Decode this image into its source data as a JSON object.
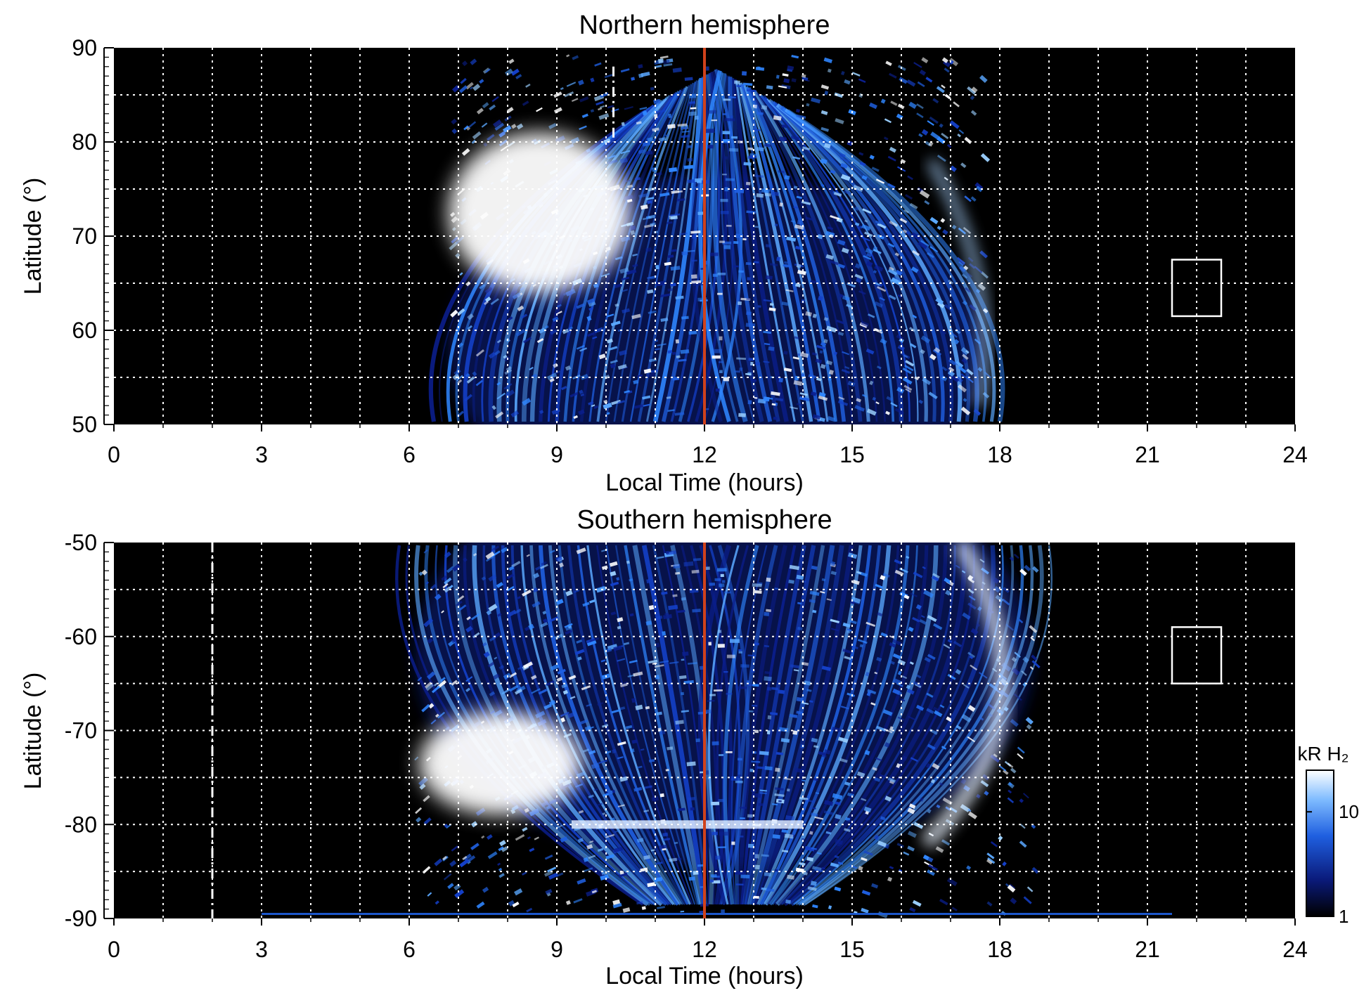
{
  "chart_data": [
    {
      "type": "heatmap",
      "title": "Northern hemisphere",
      "xlabel": "Local Time (hours)",
      "ylabel": "Latitude (°)",
      "xlim": [
        0,
        24
      ],
      "ylim": [
        50,
        90
      ],
      "xticks": [
        0,
        3,
        6,
        9,
        12,
        15,
        18,
        21,
        24
      ],
      "yticks": [
        50,
        60,
        70,
        80,
        90
      ],
      "grid": true,
      "grid_x_step": 1,
      "grid_y_step": 5,
      "noon_marker": {
        "x": 12,
        "color": "#d0421b"
      },
      "data_extent_lt": [
        6.5,
        18.0
      ],
      "bright_oval": {
        "lt": [
          6.8,
          10.5
        ],
        "lat": [
          64,
          81
        ]
      },
      "dashed_marker": {
        "x": 10.15,
        "lat": [
          80,
          88
        ]
      },
      "box": {
        "lt": [
          21.5,
          22.5
        ],
        "lat": [
          61.5,
          67.5
        ]
      }
    },
    {
      "type": "heatmap",
      "title": "Southern hemisphere",
      "xlabel": "Local Time (hours)",
      "ylabel": "Latitude (°)",
      "xlim": [
        0,
        24
      ],
      "ylim": [
        -90,
        -50
      ],
      "xticks": [
        0,
        3,
        6,
        9,
        12,
        15,
        18,
        21,
        24
      ],
      "yticks": [
        -90,
        -80,
        -70,
        -60,
        -50
      ],
      "grid": true,
      "grid_x_step": 1,
      "grid_y_step": 5,
      "noon_marker": {
        "x": 12,
        "color": "#d0421b"
      },
      "data_extent_lt": [
        5.8,
        19.0
      ],
      "bright_oval": {
        "lt": [
          6.2,
          9.5
        ],
        "lat": [
          -79,
          -68
        ]
      },
      "dashed_marker": {
        "x": 2.0,
        "lat": [
          -90,
          -50
        ]
      },
      "box": {
        "lt": [
          21.5,
          22.5
        ],
        "lat": [
          -65,
          -59
        ]
      }
    }
  ],
  "colorbar": {
    "label": "kR H₂",
    "ticks": [
      1,
      10
    ],
    "scale": "log",
    "range": [
      1,
      25
    ],
    "colors": [
      "#000000",
      "#0a1a7a",
      "#1f5fe0",
      "#7fbcff",
      "#ffffff"
    ]
  },
  "colors": {
    "background": "#000000",
    "emission_low": "#0d2a9a",
    "emission_mid": "#2a7cff",
    "emission_high": "#ffffff",
    "grid": "#ffffff",
    "noon_line": "#d0421b"
  }
}
